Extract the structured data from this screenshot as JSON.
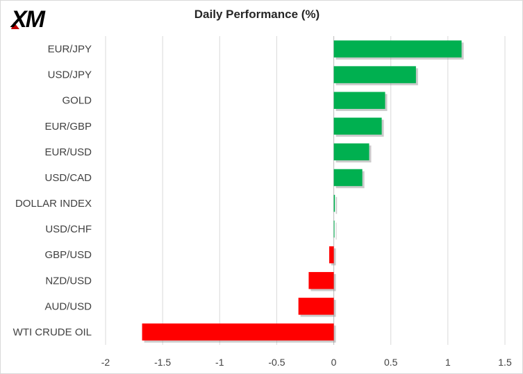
{
  "brand": {
    "logo_text": "XM"
  },
  "chart_data": {
    "type": "bar",
    "orientation": "horizontal",
    "title": "Daily Performance  (%)",
    "categories": [
      "EUR/JPY",
      "USD/JPY",
      "GOLD",
      "EUR/GBP",
      "EUR/USD",
      "USD/CAD",
      "DOLLAR INDEX",
      "USD/CHF",
      "GBP/USD",
      "NZD/USD",
      "AUD/USD",
      "WTI CRUDE OIL"
    ],
    "values": [
      1.12,
      0.72,
      0.45,
      0.42,
      0.31,
      0.25,
      0.01,
      0.005,
      -0.04,
      -0.22,
      -0.31,
      -1.68
    ],
    "xlim": [
      -2,
      1.5
    ],
    "xticks": [
      "-2",
      "-1.5",
      "-1",
      "-0.5",
      "0",
      "0.5",
      "1",
      "1.5"
    ],
    "xtick_values": [
      -2,
      -1.5,
      -1,
      -0.5,
      0,
      0.5,
      1,
      1.5
    ],
    "colors": {
      "positive": "#00b050",
      "negative": "#ff0000"
    },
    "grid": "vertical"
  }
}
